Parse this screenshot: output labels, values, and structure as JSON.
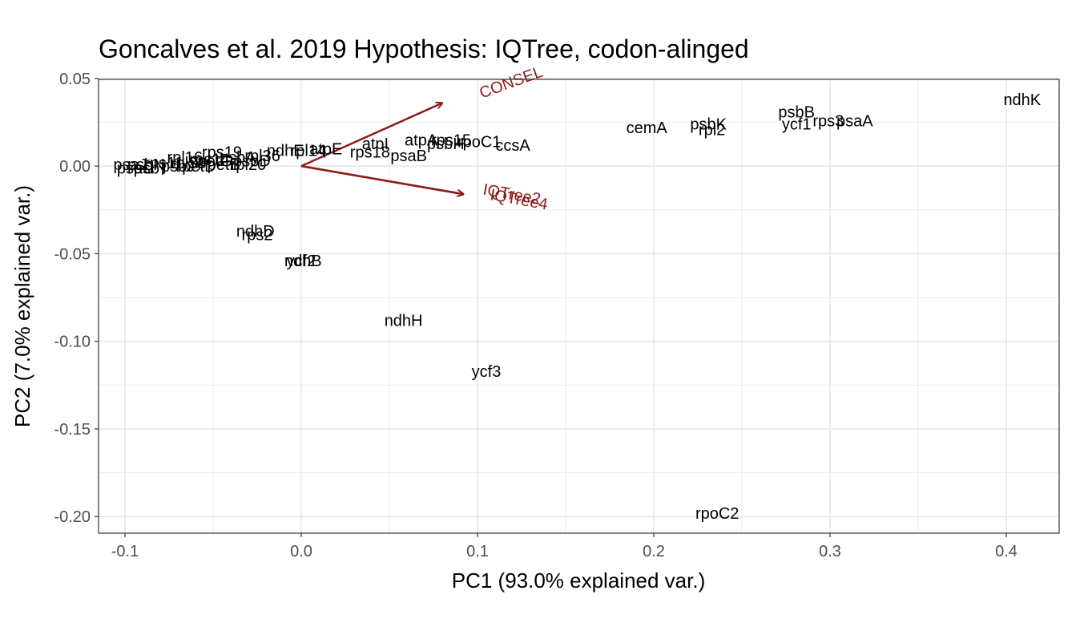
{
  "chart_data": {
    "type": "scatter",
    "title": "Goncalves et al. 2019 Hypothesis: IQTree,  codon-alinged",
    "xlabel": "PC1 (93.0% explained var.)",
    "ylabel": "PC2 (7.0% explained var.)",
    "xlim": [
      -0.115,
      0.43
    ],
    "ylim": [
      -0.2095,
      0.0495
    ],
    "x_ticks": [
      -0.1,
      0.0,
      0.1,
      0.2,
      0.3,
      0.4
    ],
    "x_tick_labels": [
      "-0.1",
      "0.0",
      "0.1",
      "0.2",
      "0.3",
      "0.4"
    ],
    "y_ticks": [
      0.05,
      0.0,
      -0.05,
      -0.1,
      -0.15,
      -0.2
    ],
    "y_tick_labels": [
      "0.05",
      "0.00",
      "-0.05",
      "-0.10",
      "-0.15",
      "-0.20"
    ],
    "grid": true,
    "colors": {
      "arrow": "#8b1a1a",
      "grid": "#ebebeb",
      "border": "#333333",
      "text": "#000000",
      "ticks": "#4d4d4d"
    },
    "arrows": [
      {
        "label": "CONSEL",
        "x": 0.08,
        "y": 0.036,
        "label_x": 0.12,
        "label_y": 0.045,
        "angle": -20
      },
      {
        "label": "IQTree2",
        "x": 0.092,
        "y": -0.016,
        "label_x": 0.119,
        "label_y": -0.019,
        "angle": 10
      },
      {
        "label": "IQTree4",
        "x": 0.092,
        "y": -0.016,
        "label_x": 0.123,
        "label_y": -0.022,
        "angle": 10
      }
    ],
    "points": [
      {
        "label": "ndhK",
        "x": 0.409,
        "y": 0.038
      },
      {
        "label": "psbB",
        "x": 0.281,
        "y": 0.031
      },
      {
        "label": "rps3",
        "x": 0.299,
        "y": 0.026
      },
      {
        "label": "psaA",
        "x": 0.314,
        "y": 0.026
      },
      {
        "label": "ycf1",
        "x": 0.281,
        "y": 0.024
      },
      {
        "label": "psbK",
        "x": 0.231,
        "y": 0.024
      },
      {
        "label": "rpl2",
        "x": 0.233,
        "y": 0.021
      },
      {
        "label": "cemA",
        "x": 0.196,
        "y": 0.022
      },
      {
        "label": "ccsA",
        "x": 0.12,
        "y": 0.012
      },
      {
        "label": "rpoC1",
        "x": 0.101,
        "y": 0.014
      },
      {
        "label": "atpA",
        "x": 0.068,
        "y": 0.015
      },
      {
        "label": "rps15",
        "x": 0.085,
        "y": 0.015
      },
      {
        "label": "psbH",
        "x": 0.082,
        "y": 0.013
      },
      {
        "label": "atpI",
        "x": 0.042,
        "y": 0.013
      },
      {
        "label": "rps18",
        "x": 0.039,
        "y": 0.008
      },
      {
        "label": "psaB",
        "x": 0.061,
        "y": 0.006
      },
      {
        "label": "atpE",
        "x": 0.014,
        "y": 0.01
      },
      {
        "label": "rpl14",
        "x": 0.004,
        "y": 0.009
      },
      {
        "label": "ndhE",
        "x": -0.009,
        "y": 0.009
      },
      {
        "label": "rps19",
        "x": -0.045,
        "y": 0.008
      },
      {
        "label": "rpl36",
        "x": -0.022,
        "y": 0.006
      },
      {
        "label": "psbA",
        "x": -0.036,
        "y": 0.005
      },
      {
        "label": "rpl16",
        "x": -0.066,
        "y": 0.005
      },
      {
        "label": "rps14",
        "x": -0.052,
        "y": 0.004
      },
      {
        "label": "psbD",
        "x": -0.028,
        "y": 0.003
      },
      {
        "label": "rps11",
        "x": -0.078,
        "y": 0.002
      },
      {
        "label": "psbN",
        "x": -0.088,
        "y": 0.001
      },
      {
        "label": "psaJ",
        "x": -0.097,
        "y": 0.001
      },
      {
        "label": "psaC",
        "x": -0.094,
        "y": -0.001
      },
      {
        "label": "psbJ",
        "x": -0.07,
        "y": 0.0
      },
      {
        "label": "petD",
        "x": -0.058,
        "y": 0.0
      },
      {
        "label": "petB",
        "x": -0.044,
        "y": 0.001
      },
      {
        "label": "rpl20",
        "x": -0.03,
        "y": 0.001
      },
      {
        "label": "psbT",
        "x": -0.085,
        "y": -0.001
      },
      {
        "label": "rpl33",
        "x": -0.064,
        "y": 0.002
      },
      {
        "label": "petG",
        "x": -0.049,
        "y": 0.003
      },
      {
        "label": "ndhD",
        "x": -0.026,
        "y": -0.037
      },
      {
        "label": "rps2",
        "x": -0.025,
        "y": -0.039
      },
      {
        "label": "ycf2",
        "x": 0.0,
        "y": -0.054
      },
      {
        "label": "ndhB",
        "x": 0.001,
        "y": -0.054
      },
      {
        "label": "ndhH",
        "x": 0.058,
        "y": -0.088
      },
      {
        "label": "ycf3",
        "x": 0.105,
        "y": -0.117
      },
      {
        "label": "rpoC2",
        "x": 0.236,
        "y": -0.198
      }
    ]
  }
}
